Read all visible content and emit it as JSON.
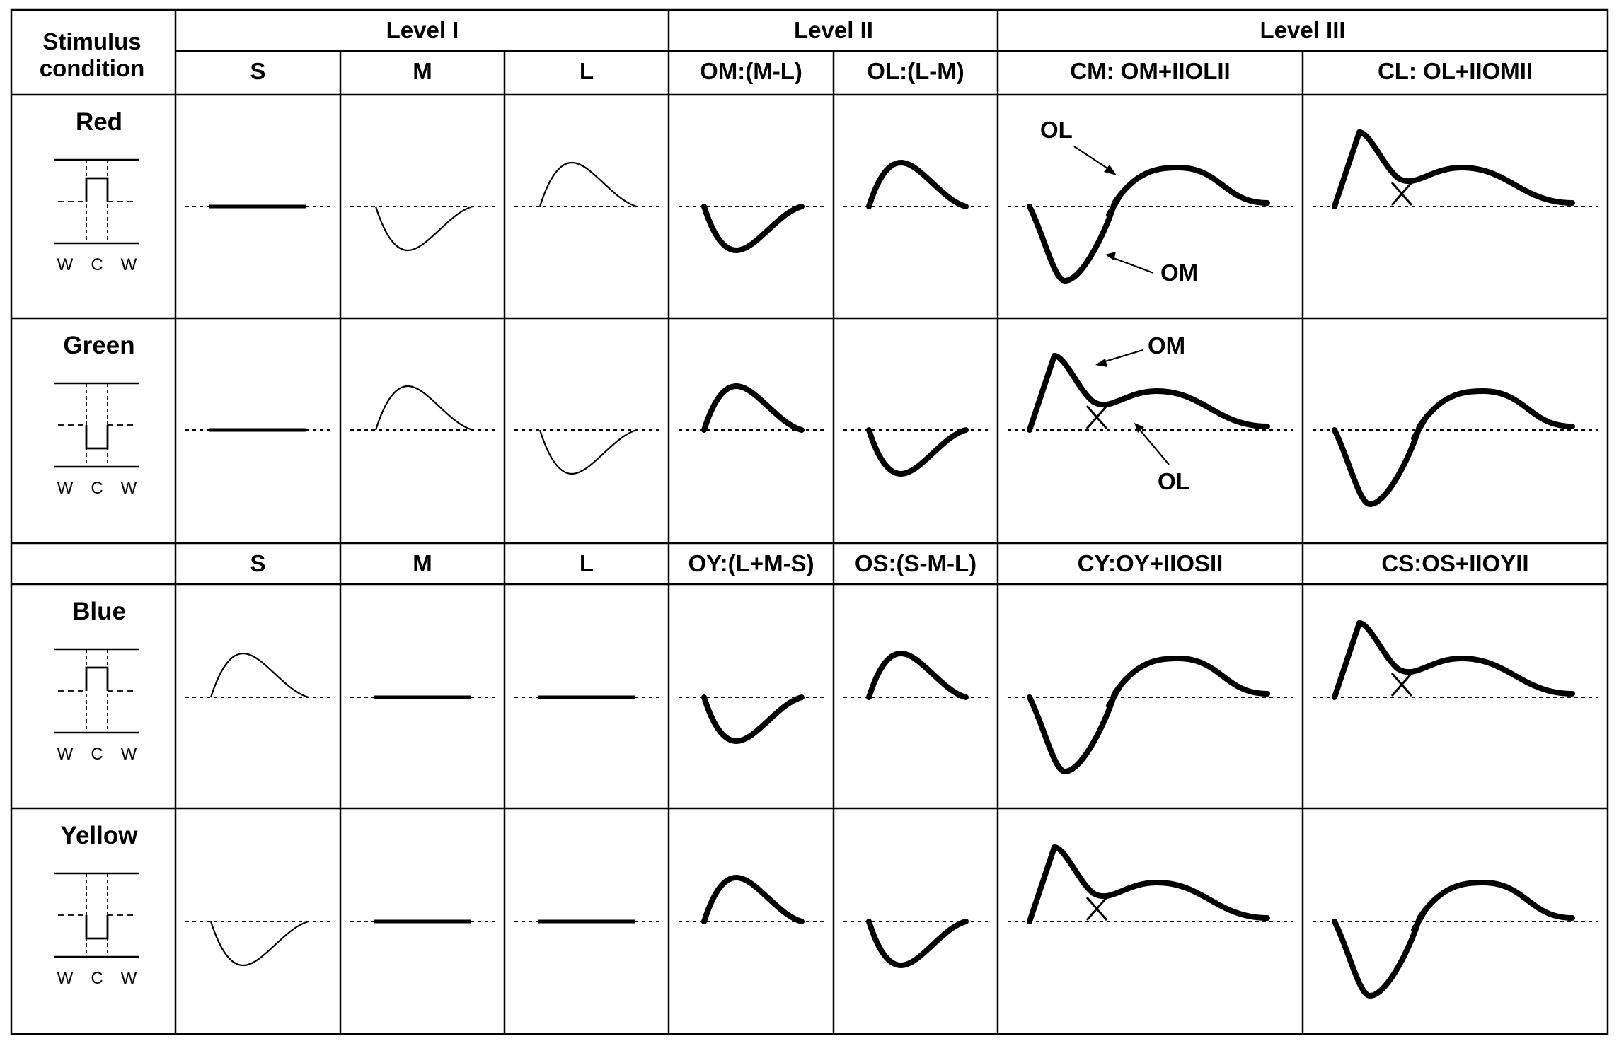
{
  "header": {
    "stimulus": [
      "Stimulus",
      "condition"
    ],
    "levels": [
      "Level I",
      "Level II",
      "Level III"
    ],
    "subheads_top": [
      "S",
      "M",
      "L",
      "OM:(M-L)",
      "OL:(L-M)",
      "CM: OM+IIOLII",
      "CL: OL+IIOMII"
    ],
    "subheads_bottom": [
      "S",
      "M",
      "L",
      "OY:(L+M-S)",
      "OS:(S-M-L)",
      "CY:OY+IIOSII",
      "CS:OS+IIOYII"
    ]
  },
  "rows": [
    {
      "label": "Red",
      "stimulus": "up",
      "wcw": [
        "W",
        "C",
        "W"
      ],
      "cells": [
        "flat",
        "neg",
        "pos",
        "neg",
        "pos",
        "negpos",
        "pospos"
      ]
    },
    {
      "label": "Green",
      "stimulus": "down",
      "wcw": [
        "W",
        "C",
        "W"
      ],
      "cells": [
        "flat",
        "pos",
        "neg",
        "pos",
        "neg",
        "pospos",
        "negpos"
      ]
    },
    {
      "label": "Blue",
      "stimulus": "up",
      "wcw": [
        "W",
        "C",
        "W"
      ],
      "cells": [
        "pos",
        "flat",
        "flat",
        "neg",
        "pos",
        "negpos",
        "pospos"
      ]
    },
    {
      "label": "Yellow",
      "stimulus": "down",
      "wcw": [
        "W",
        "C",
        "W"
      ],
      "cells": [
        "neg",
        "flat",
        "flat",
        "pos",
        "neg",
        "pospos",
        "negpos"
      ]
    }
  ],
  "annotations": {
    "red_cm": [
      "OL",
      "OM"
    ],
    "green_cm": [
      "OM",
      "OL"
    ]
  }
}
